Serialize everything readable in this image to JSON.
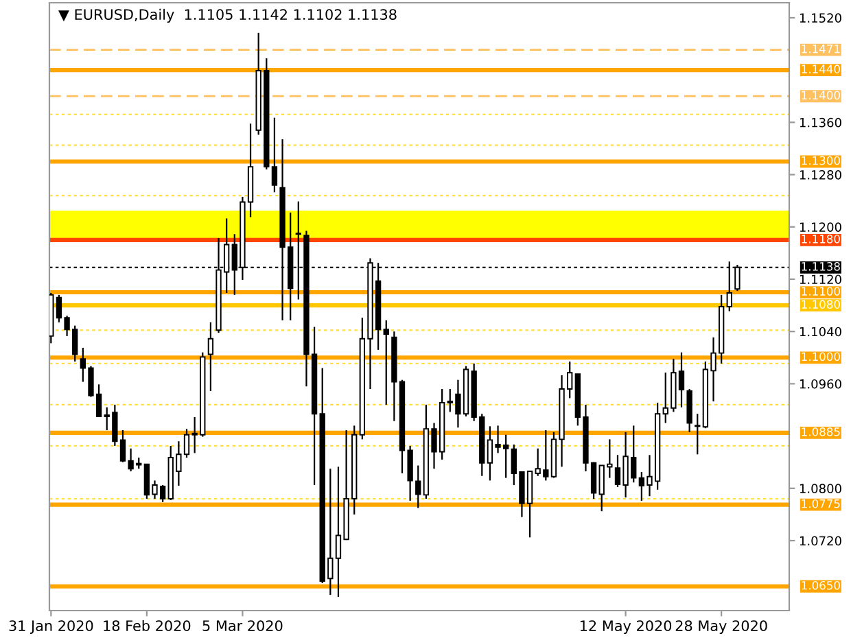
{
  "chart_data": {
    "type": "candlestick",
    "title": "▼ EURUSD,Daily  1.1105 1.1142 1.1102 1.1138",
    "color": "#000000",
    "categories": [
      "31 Jan 2020",
      null,
      null,
      null,
      null,
      null,
      null,
      null,
      null,
      null,
      null,
      null,
      "18 Feb 2020",
      null,
      null,
      null,
      null,
      null,
      null,
      null,
      null,
      null,
      null,
      null,
      "5 Mar 2020",
      null,
      null,
      null,
      null,
      null,
      null,
      null,
      null,
      null,
      null,
      null,
      null,
      null,
      null,
      null,
      null,
      null,
      null,
      null,
      null,
      null,
      null,
      null,
      null,
      null,
      null,
      null,
      null,
      null,
      null,
      null,
      null,
      null,
      null,
      null,
      null,
      null,
      null,
      null,
      null,
      null,
      null,
      null,
      null,
      null,
      null,
      null,
      "12 May 2020",
      null,
      null,
      null,
      null,
      null,
      null,
      null,
      null,
      null,
      null,
      null,
      "28 May 2020",
      null,
      null
    ],
    "ohlc": [
      [
        1.1033,
        1.1099,
        1.1022,
        1.1096
      ],
      [
        1.1092,
        1.1096,
        1.1054,
        1.1061
      ],
      [
        1.1061,
        1.1064,
        1.1033,
        1.1043
      ],
      [
        1.1043,
        1.1049,
        1.0994,
        1.1005
      ],
      [
        1.0998,
        1.1015,
        1.0963,
        1.0984
      ],
      [
        1.0984,
        1.0987,
        1.094,
        1.0942
      ],
      [
        1.0944,
        1.0959,
        1.0909,
        1.091
      ],
      [
        1.0912,
        1.0924,
        1.0889,
        1.091
      ],
      [
        1.0916,
        1.0928,
        1.0865,
        1.0872
      ],
      [
        1.0874,
        1.0889,
        1.084,
        1.0842
      ],
      [
        1.0842,
        1.0861,
        1.0826,
        1.083
      ],
      [
        1.0838,
        1.0847,
        1.083,
        1.0836
      ],
      [
        1.0837,
        1.0837,
        1.0784,
        1.079
      ],
      [
        1.0791,
        1.0812,
        1.0784,
        1.0805
      ],
      [
        1.0803,
        1.0805,
        1.0779,
        1.0784
      ],
      [
        1.0784,
        1.0865,
        1.0782,
        1.0847
      ],
      [
        1.0826,
        1.0872,
        1.0804,
        1.0852
      ],
      [
        1.0852,
        1.0891,
        1.0847,
        1.0882
      ],
      [
        1.0882,
        1.0909,
        1.0854,
        1.0884
      ],
      [
        1.0882,
        1.1008,
        1.0879,
        1.1001
      ],
      [
        1.1005,
        1.1054,
        1.0949,
        1.1029
      ],
      [
        1.1042,
        1.1183,
        1.1038,
        1.1134
      ],
      [
        1.1131,
        1.1213,
        1.1099,
        1.1173
      ],
      [
        1.1173,
        1.1189,
        1.1096,
        1.1134
      ],
      [
        1.1138,
        1.1246,
        1.1119,
        1.1238
      ],
      [
        1.1238,
        1.1358,
        1.1215,
        1.1292
      ],
      [
        1.1348,
        1.1497,
        1.1341,
        1.1439
      ],
      [
        1.1439,
        1.1458,
        1.1288,
        1.1292
      ],
      [
        1.1292,
        1.1367,
        1.1253,
        1.1264
      ],
      [
        1.126,
        1.1334,
        1.1057,
        1.1169
      ],
      [
        1.1169,
        1.1222,
        1.1057,
        1.1106
      ],
      [
        1.119,
        1.1239,
        1.1089,
        1.1189
      ],
      [
        1.1187,
        1.1194,
        1.0956,
        1.1005
      ],
      [
        1.1005,
        1.1047,
        1.0805,
        1.0914
      ],
      [
        1.0914,
        1.0984,
        1.0655,
        1.0658
      ],
      [
        1.0662,
        1.083,
        1.0637,
        1.0693
      ],
      [
        1.0693,
        1.0833,
        1.0634,
        1.0728
      ],
      [
        1.0722,
        1.0889,
        1.0721,
        1.0784
      ],
      [
        1.0784,
        1.0896,
        1.076,
        1.0882
      ],
      [
        1.0882,
        1.1061,
        1.0875,
        1.1029
      ],
      [
        1.1029,
        1.1152,
        1.0952,
        1.1145
      ],
      [
        1.1117,
        1.1145,
        1.1012,
        1.1043
      ],
      [
        1.1043,
        1.1057,
        1.0928,
        1.1036
      ],
      [
        1.1031,
        1.104,
        1.0903,
        1.0963
      ],
      [
        1.0963,
        1.0966,
        1.0823,
        1.0858
      ],
      [
        1.0858,
        1.0865,
        1.0781,
        1.0812
      ],
      [
        1.0811,
        1.0835,
        1.077,
        1.0791
      ],
      [
        1.079,
        1.0928,
        1.0784,
        1.0891
      ],
      [
        1.0891,
        1.09,
        1.083,
        1.0856
      ],
      [
        1.0856,
        1.0952,
        1.0844,
        1.0931
      ],
      [
        1.0931,
        1.0952,
        1.0917,
        1.0933
      ],
      [
        1.0944,
        1.0966,
        1.0893,
        1.0914
      ],
      [
        1.0914,
        1.0987,
        1.091,
        1.0982
      ],
      [
        1.0979,
        1.0991,
        1.0903,
        1.0909
      ],
      [
        1.0909,
        1.0914,
        1.0819,
        1.0839
      ],
      [
        1.0839,
        1.0895,
        1.0812,
        1.0874
      ],
      [
        1.0867,
        1.0896,
        1.0854,
        1.0863
      ],
      [
        1.0866,
        1.0882,
        1.0816,
        1.0861
      ],
      [
        1.086,
        1.0867,
        1.0805,
        1.0823
      ],
      [
        1.0825,
        1.0826,
        1.0756,
        1.0777
      ],
      [
        1.0777,
        1.0826,
        1.0725,
        1.0826
      ],
      [
        1.0823,
        1.0861,
        1.0819,
        1.083
      ],
      [
        1.0828,
        1.0889,
        1.0812,
        1.0818
      ],
      [
        1.0818,
        1.0886,
        1.0816,
        1.0875
      ],
      [
        1.0875,
        1.0973,
        1.0833,
        1.0952
      ],
      [
        1.0952,
        1.0994,
        1.0938,
        1.0977
      ],
      [
        1.0975,
        1.0975,
        1.0896,
        1.0909
      ],
      [
        1.0909,
        1.0928,
        1.0826,
        1.0839
      ],
      [
        1.0839,
        1.084,
        1.0784,
        1.0793
      ],
      [
        1.0791,
        1.0835,
        1.0765,
        1.0835
      ],
      [
        1.0833,
        1.0875,
        1.0816,
        1.0837
      ],
      [
        1.0831,
        1.0851,
        1.0802,
        1.0806
      ],
      [
        1.0805,
        1.0886,
        1.0786,
        1.0849
      ],
      [
        1.0847,
        1.0896,
        1.0809,
        1.0816
      ],
      [
        1.0816,
        1.0825,
        1.0781,
        1.0804
      ],
      [
        1.0805,
        1.0851,
        1.0788,
        1.0818
      ],
      [
        1.0811,
        1.0931,
        1.0798,
        1.0914
      ],
      [
        1.0914,
        1.0977,
        1.09,
        1.0923
      ],
      [
        1.0923,
        1.0998,
        1.0917,
        1.0977
      ],
      [
        1.0979,
        1.1008,
        1.0924,
        1.0951
      ],
      [
        1.0949,
        1.0952,
        1.0886,
        1.09
      ],
      [
        1.0896,
        1.0914,
        1.0852,
        1.0895
      ],
      [
        1.0894,
        1.0994,
        1.0892,
        1.0982
      ],
      [
        1.098,
        1.1031,
        1.0933,
        1.1007
      ],
      [
        1.1007,
        1.1096,
        1.0991,
        1.1078
      ],
      [
        1.1078,
        1.1147,
        1.1071,
        1.1099
      ],
      [
        1.1105,
        1.1142,
        1.1102,
        1.1138
      ]
    ],
    "ylim": [
      1.0613,
      1.1543
    ],
    "yticks": [
      {
        "value": 1.072,
        "label": "1.0720"
      },
      {
        "value": 1.08,
        "label": "1.0800"
      },
      {
        "value": 1.096,
        "label": "1.0960"
      },
      {
        "value": 1.104,
        "label": "1.1040"
      },
      {
        "value": 1.112,
        "label": "1.1120"
      },
      {
        "value": 1.12,
        "label": "1.1200"
      },
      {
        "value": 1.128,
        "label": "1.1280"
      },
      {
        "value": 1.136,
        "label": "1.1360"
      },
      {
        "value": 1.152,
        "label": "1.1520"
      }
    ],
    "grid": false,
    "bands": [
      {
        "axis": "y",
        "from": 1.118,
        "to": 1.1225,
        "color": "#ffff00"
      }
    ],
    "ref_lines": [
      {
        "axis": "y",
        "value": 1.1471,
        "label": "1.1471",
        "color": "#ffc060",
        "line_style": "dashed"
      },
      {
        "axis": "y",
        "value": 1.144,
        "label": "1.1440",
        "color": "#ffa500",
        "line_style": "solid"
      },
      {
        "axis": "y",
        "value": 1.14,
        "label": "1.1400",
        "color": "#ffc060",
        "line_style": "dashed"
      },
      {
        "axis": "y",
        "value": 1.13,
        "label": "1.1300",
        "color": "#ffa500",
        "line_style": "solid"
      },
      {
        "axis": "y",
        "value": 1.118,
        "label": "1.1180",
        "color": "#ff4500",
        "line_style": "solid"
      },
      {
        "axis": "y",
        "value": 1.1138,
        "label": "1.1138",
        "color": "#000000",
        "line_style": "dotted"
      },
      {
        "axis": "y",
        "value": 1.11,
        "label": "1.1100",
        "color": "#ffa500",
        "line_style": "solid"
      },
      {
        "axis": "y",
        "value": 1.108,
        "label": "1.1080",
        "color": "#ffc800",
        "line_style": "solid"
      },
      {
        "axis": "y",
        "value": 1.1,
        "label": "1.1000",
        "color": "#ffa500",
        "line_style": "solid"
      },
      {
        "axis": "y",
        "value": 1.0885,
        "label": "1.0885",
        "color": "#ffa500",
        "line_style": "solid"
      },
      {
        "axis": "y",
        "value": 1.0775,
        "label": "1.0775",
        "color": "#ffa500",
        "line_style": "solid"
      },
      {
        "axis": "y",
        "value": 1.065,
        "label": "1.0650",
        "color": "#ffa500",
        "line_style": "solid"
      },
      {
        "axis": "y",
        "value": 1.1372,
        "color": "#ffe040",
        "line_style": "dotted"
      },
      {
        "axis": "y",
        "value": 1.1325,
        "color": "#ffe040",
        "line_style": "dotted"
      },
      {
        "axis": "y",
        "value": 1.1248,
        "color": "#ffe040",
        "line_style": "dotted"
      },
      {
        "axis": "y",
        "value": 1.1042,
        "color": "#ffe040",
        "line_style": "dotted"
      },
      {
        "axis": "y",
        "value": 1.0991,
        "color": "#ffe040",
        "line_style": "dotted"
      },
      {
        "axis": "y",
        "value": 1.0928,
        "color": "#ffe040",
        "line_style": "dotted"
      },
      {
        "axis": "y",
        "value": 1.0865,
        "color": "#ffe040",
        "line_style": "dotted"
      },
      {
        "axis": "y",
        "value": 1.0784,
        "color": "#ffe040",
        "line_style": "dotted"
      }
    ]
  }
}
